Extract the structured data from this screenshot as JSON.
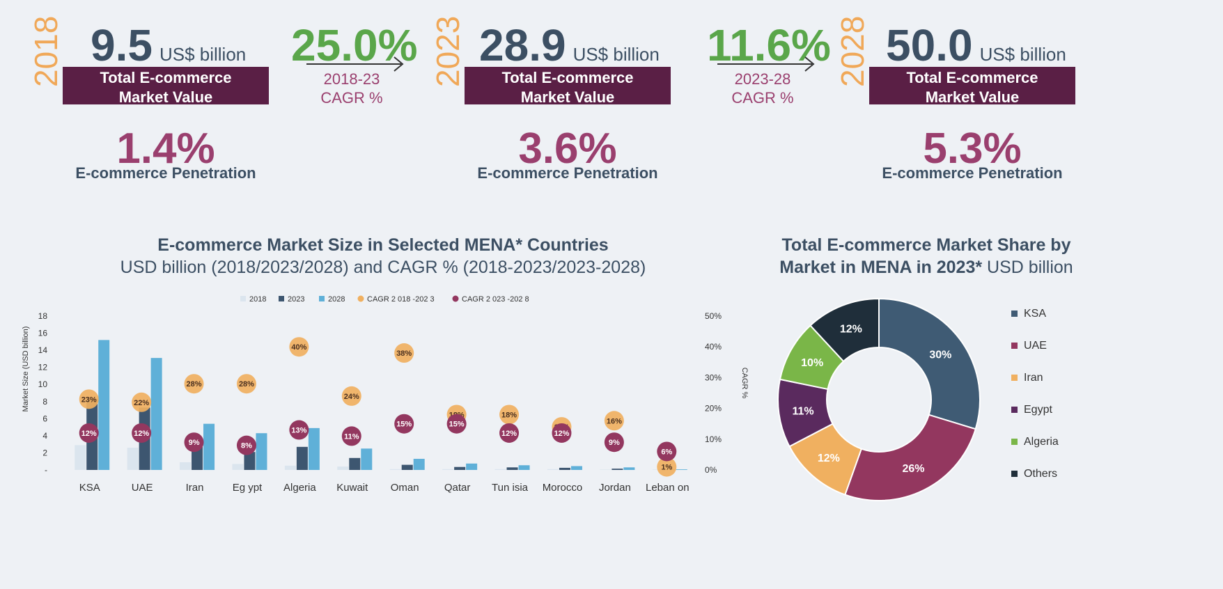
{
  "kpis": [
    {
      "year": "2018",
      "value": "9.5",
      "unit": "US$ billion",
      "band": [
        "Total E-commerce",
        "Market Value"
      ],
      "penetration": "1.4%",
      "penetration_label": "E-commerce Penetration"
    },
    {
      "year": "2023",
      "value": "28.9",
      "unit": "US$ billion",
      "band": [
        "Total E-commerce",
        "Market Value"
      ],
      "penetration": "3.6%",
      "penetration_label": "E-commerce Penetration"
    },
    {
      "year": "2028",
      "value": "50.0",
      "unit": "US$ billion",
      "band": [
        "Total E-commerce",
        "Market Value"
      ],
      "penetration": "5.3%",
      "penetration_label": "E-commerce Penetration"
    }
  ],
  "growth": [
    {
      "value": "25.0%",
      "period": "2018-23",
      "label": "CAGR %"
    },
    {
      "value": "11.6%",
      "period": "2023-28",
      "label": "CAGR %"
    }
  ],
  "bar_title": {
    "line1": "E-commerce Market Size in Selected MENA* Countries",
    "line2": "USD billion (2018/2023/2028) and CAGR % (2018-2023/2023-2028)"
  },
  "pie_title": {
    "line1": "Total E-commerce Market Share by",
    "line2_bold": "Market in MENA in 2023*",
    "line2_rest": " USD billion"
  },
  "colors": {
    "c2018": "#dbe5ee",
    "c2023": "#3d5670",
    "c2028": "#5fb0d8",
    "cagr1": "#f0b060",
    "cagr2": "#93375f"
  },
  "chart_data": [
    {
      "type": "bar",
      "categories": [
        "KSA",
        "UAE",
        "Iran",
        "Egypt",
        "Algeria",
        "Kuwait",
        "Oman",
        "Qatar",
        "Tunisia",
        "Morocco",
        "Jordan",
        "Lebanon"
      ],
      "category_labels": [
        "KSA",
        "UAE",
        "Iran",
        "Eg ypt",
        "Algeria",
        "Kuwait",
        "Oman",
        "Qatar",
        "Tun isia",
        "Morocco",
        "Jordan",
        "Leban on"
      ],
      "series": [
        {
          "name": "2018",
          "values": [
            2.9,
            2.6,
            0.9,
            0.7,
            0.5,
            0.4,
            0.1,
            0.1,
            0.1,
            0.1,
            0.05,
            0.05
          ]
        },
        {
          "name": "2023",
          "values": [
            8.3,
            7.3,
            2.7,
            2.1,
            2.7,
            1.4,
            0.6,
            0.35,
            0.3,
            0.25,
            0.15,
            0.05
          ]
        },
        {
          "name": "2028",
          "values": [
            15.2,
            13.1,
            5.4,
            4.3,
            4.9,
            2.5,
            1.3,
            0.75,
            0.55,
            0.45,
            0.3,
            0.07
          ]
        }
      ],
      "cagr_series": [
        {
          "name": "CAGR 2 018 -202 3",
          "values": [
            23,
            22,
            28,
            28,
            40,
            24,
            38,
            18,
            18,
            14,
            16,
            1
          ]
        },
        {
          "name": "CAGR 2 023 -202 8",
          "values": [
            12,
            12,
            9,
            8,
            13,
            11,
            15,
            15,
            12,
            12,
            9,
            6
          ]
        }
      ],
      "legend": [
        "2018",
        "2023",
        "2028",
        "CAGR 2 018 -202 3",
        "CAGR 2 023 -202 8"
      ],
      "ylabel": "Market Size (USD billion)",
      "y2label": "CAGR %",
      "ylim": [
        0,
        18
      ],
      "yticks": [
        "-",
        "2",
        "4",
        "6",
        "8",
        "10",
        "12",
        "14",
        "16",
        "18"
      ],
      "y2lim": [
        0,
        50
      ],
      "y2ticks": [
        "0%",
        "10%",
        "20%",
        "30%",
        "40%",
        "50%"
      ],
      "legend_position": "top"
    },
    {
      "type": "pie",
      "labels": [
        "KSA",
        "UAE",
        "Iran",
        "Egypt",
        "Algeria",
        "Others"
      ],
      "values": [
        30,
        26,
        12,
        11,
        10,
        12
      ],
      "value_labels": [
        "30%",
        "26%",
        "12%",
        "11%",
        "10%",
        "12%"
      ],
      "colors": [
        "#3f5b74",
        "#93375f",
        "#f0b060",
        "#5a2a5e",
        "#7ab648",
        "#1f2e3a"
      ],
      "legend_position": "right"
    }
  ]
}
